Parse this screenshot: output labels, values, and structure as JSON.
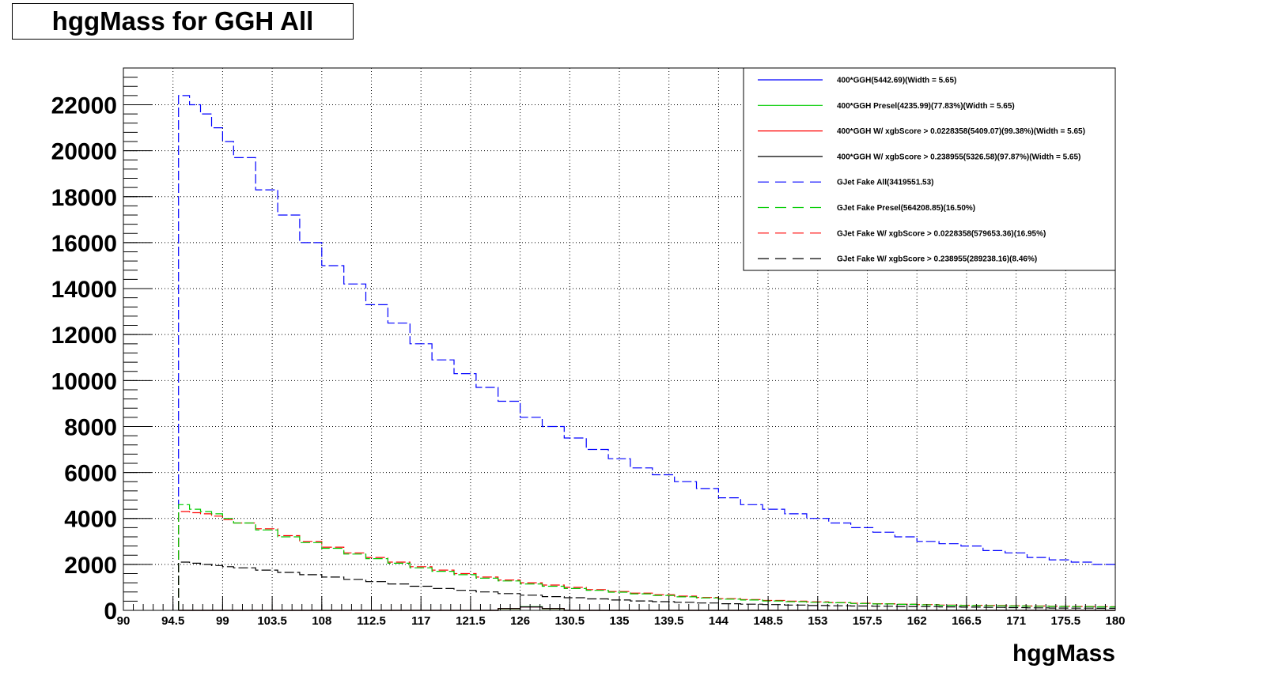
{
  "title": "hggMass for GGH All",
  "chart_data": {
    "type": "line",
    "title": "hggMass for GGH All",
    "xlabel": "hggMass",
    "ylabel": "",
    "xlim": [
      90,
      180
    ],
    "ylim": [
      0,
      23600
    ],
    "grid": true,
    "legend_position": "top-right",
    "x_tick_labels": [
      "90",
      "94.5",
      "99",
      "103.5",
      "108",
      "112.5",
      "117",
      "121.5",
      "126",
      "130.5",
      "135",
      "139.5",
      "144",
      "148.5",
      "153",
      "157.5",
      "162",
      "166.5",
      "171",
      "175.5",
      "180"
    ],
    "y_tick_labels": [
      "0",
      "2000",
      "4000",
      "6000",
      "8000",
      "10000",
      "12000",
      "14000",
      "16000",
      "18000",
      "20000",
      "22000"
    ],
    "x": [
      95,
      96,
      97,
      98,
      99,
      100,
      102,
      104,
      106,
      108,
      110,
      112,
      114,
      116,
      118,
      120,
      122,
      124,
      126,
      128,
      130,
      132,
      134,
      136,
      138,
      140,
      142,
      144,
      146,
      148,
      150,
      152,
      154,
      156,
      158,
      160,
      162,
      164,
      166,
      168,
      170,
      172,
      174,
      176,
      178,
      180
    ],
    "series": [
      {
        "name": "400*GGH(5442.69)(Width = 5.65)",
        "color": "#0000ff",
        "dash": "solid",
        "values": [
          0,
          0,
          0,
          0,
          0,
          0,
          0,
          0,
          0,
          0,
          0,
          0,
          0,
          0,
          0,
          0,
          0,
          80,
          150,
          80,
          0,
          0,
          0,
          0,
          0,
          0,
          0,
          0,
          0,
          0,
          0,
          0,
          0,
          0,
          0,
          0,
          0,
          0,
          0,
          0,
          0,
          0,
          0,
          0,
          0,
          0
        ]
      },
      {
        "name": "400*GGH Presel(4235.99)(77.83%)(Width = 5.65)",
        "color": "#00cc00",
        "dash": "solid",
        "values": [
          0,
          0,
          0,
          0,
          0,
          0,
          0,
          0,
          0,
          0,
          0,
          0,
          0,
          0,
          0,
          0,
          0,
          70,
          160,
          70,
          0,
          0,
          0,
          0,
          0,
          0,
          0,
          0,
          0,
          0,
          0,
          0,
          0,
          0,
          0,
          0,
          0,
          0,
          0,
          0,
          0,
          0,
          0,
          0,
          0,
          0
        ]
      },
      {
        "name": "400*GGH W/ xgbScore > 0.0228358(5409.07)(99.38%)(Width = 5.65)",
        "color": "#ff0000",
        "dash": "solid",
        "values": [
          0,
          0,
          0,
          0,
          0,
          0,
          0,
          0,
          0,
          0,
          0,
          0,
          0,
          0,
          0,
          0,
          0,
          80,
          150,
          80,
          0,
          0,
          0,
          0,
          0,
          0,
          0,
          0,
          0,
          0,
          0,
          0,
          0,
          0,
          0,
          0,
          0,
          0,
          0,
          0,
          0,
          0,
          0,
          0,
          0,
          0
        ]
      },
      {
        "name": "400*GGH W/ xgbScore > 0.238955(5326.58)(97.87%)(Width = 5.65)",
        "color": "#000000",
        "dash": "solid",
        "values": [
          0,
          0,
          0,
          0,
          0,
          0,
          0,
          0,
          0,
          0,
          0,
          0,
          0,
          0,
          0,
          0,
          0,
          80,
          150,
          80,
          0,
          0,
          0,
          0,
          0,
          0,
          0,
          0,
          0,
          0,
          0,
          0,
          0,
          0,
          0,
          0,
          0,
          0,
          0,
          0,
          0,
          0,
          0,
          0,
          0,
          0
        ]
      },
      {
        "name": "GJet Fake All(3419551.53)",
        "color": "#0000ff",
        "dash": "dashed",
        "values": [
          22400,
          22000,
          21600,
          21000,
          20400,
          19700,
          18300,
          17200,
          16000,
          15000,
          14200,
          13300,
          12500,
          11600,
          10900,
          10300,
          9700,
          9100,
          8400,
          8000,
          7500,
          7000,
          6600,
          6200,
          5900,
          5600,
          5300,
          4900,
          4600,
          4400,
          4200,
          4000,
          3800,
          3600,
          3400,
          3200,
          3000,
          2900,
          2800,
          2600,
          2500,
          2300,
          2200,
          2100,
          2000,
          1850
        ]
      },
      {
        "name": "GJet Fake Presel(564208.85)(16.50%)",
        "color": "#00cc00",
        "dash": "dashed",
        "values": [
          4600,
          4400,
          4300,
          4200,
          4000,
          3800,
          3500,
          3200,
          2950,
          2700,
          2450,
          2250,
          2050,
          1850,
          1700,
          1550,
          1400,
          1280,
          1150,
          1050,
          950,
          870,
          790,
          720,
          650,
          590,
          540,
          490,
          450,
          410,
          380,
          350,
          330,
          300,
          280,
          260,
          240,
          220,
          210,
          200,
          190,
          180,
          170,
          160,
          150,
          140
        ]
      },
      {
        "name": "GJet Fake W/ xgbScore > 0.0228358(579653.36)(16.95%)",
        "color": "#ff0000",
        "dash": "dashed",
        "values": [
          4300,
          4250,
          4200,
          4100,
          3950,
          3800,
          3550,
          3250,
          3000,
          2750,
          2500,
          2300,
          2100,
          1900,
          1750,
          1600,
          1450,
          1320,
          1200,
          1100,
          1000,
          900,
          820,
          750,
          680,
          620,
          560,
          510,
          470,
          430,
          400,
          370,
          340,
          310,
          290,
          270,
          250,
          230,
          220,
          210,
          200,
          190,
          180,
          170,
          160,
          150
        ]
      },
      {
        "name": "GJet Fake W/ xgbScore > 0.238955(289238.16)(8.46%)",
        "color": "#000000",
        "dash": "dashed",
        "values": [
          2100,
          2050,
          2000,
          1950,
          1900,
          1850,
          1750,
          1650,
          1550,
          1450,
          1350,
          1250,
          1150,
          1050,
          950,
          870,
          800,
          730,
          660,
          600,
          550,
          500,
          450,
          410,
          380,
          350,
          320,
          290,
          270,
          250,
          230,
          210,
          200,
          190,
          180,
          170,
          160,
          150,
          140,
          130,
          120,
          110,
          100,
          95,
          90,
          85
        ]
      }
    ]
  }
}
